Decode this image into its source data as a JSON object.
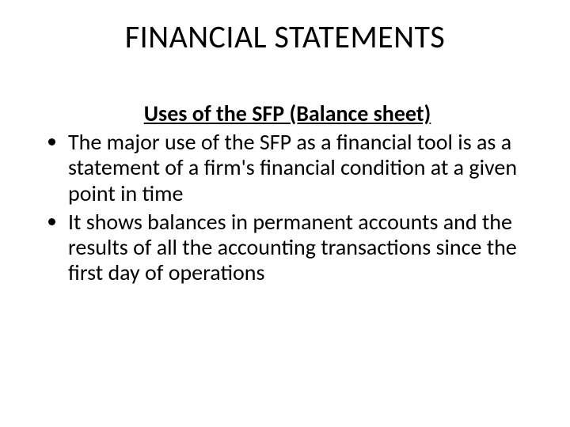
{
  "slide": {
    "title": "FINANCIAL STATEMENTS",
    "subtitle": "Uses of the SFP (Balance sheet)",
    "bullets": [
      "The major use of the SFP as a financial tool is as a statement of a firm's financial condition at a given point in time",
      "It shows balances in permanent accounts and the results of all the accounting transactions since the first day of operations"
    ],
    "style": {
      "background_color": "#ffffff",
      "text_color": "#000000",
      "title_fontsize": 40,
      "subtitle_fontsize": 28,
      "body_fontsize": 28,
      "font_family": "Calibri"
    }
  }
}
